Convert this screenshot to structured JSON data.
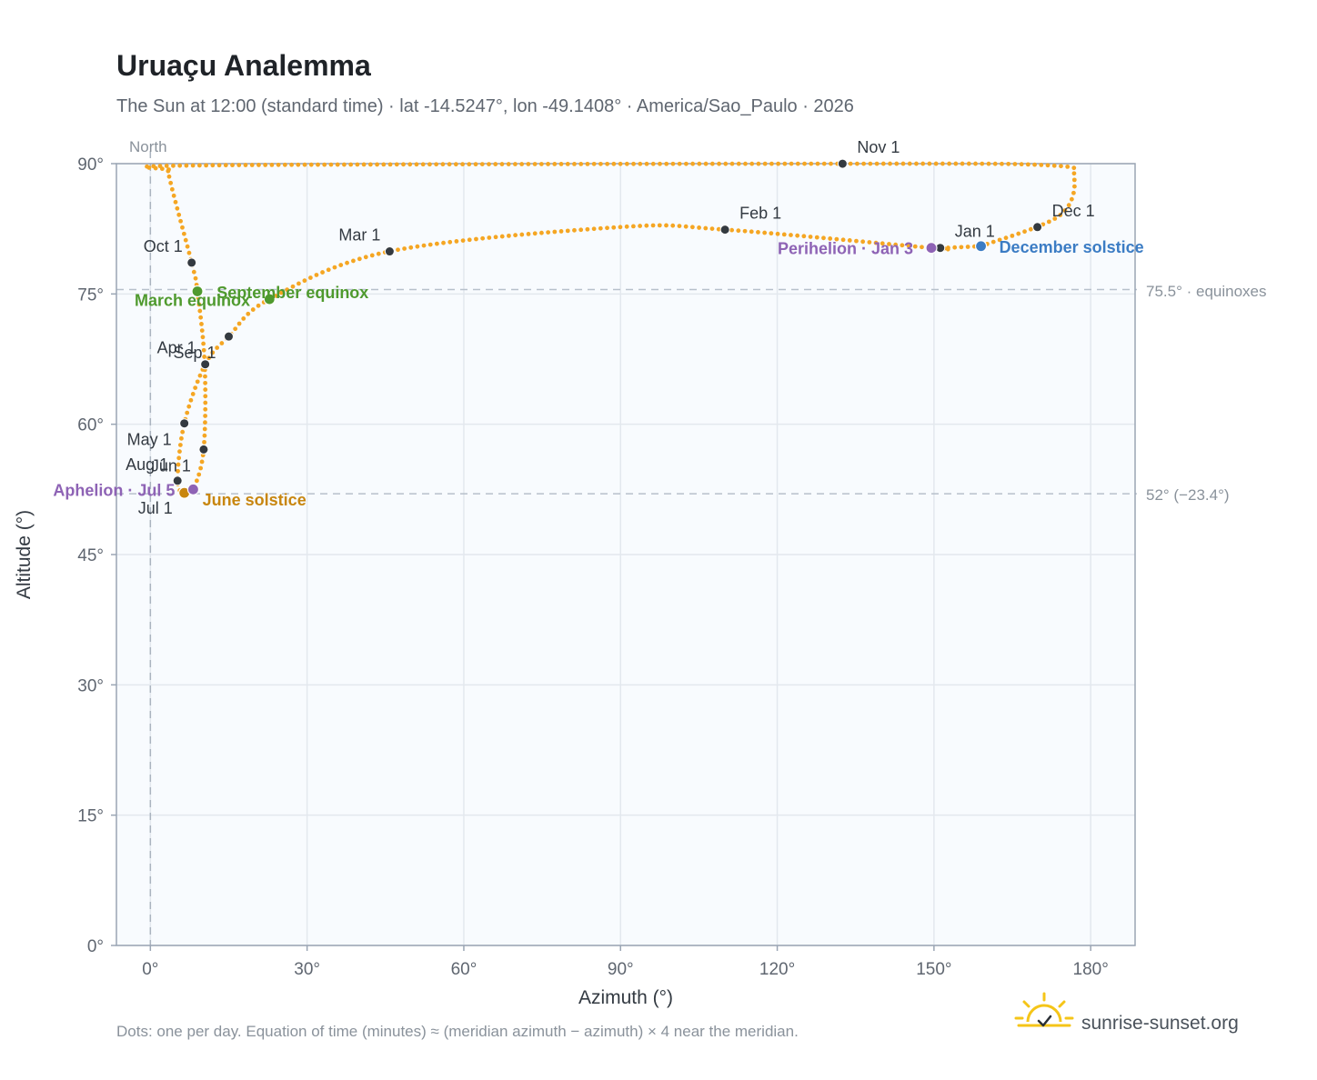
{
  "title": "Uruaçu Analemma",
  "subtitle": "The Sun at 12:00 (standard time) · lat -14.5247°, lon -49.1408° · America/Sao_Paulo · 2026",
  "footnote": "Dots: one per day. Equation of time (minutes) ≈ (meridian azimuth − azimuth) × 4 near the meridian.",
  "brand": {
    "text": "sunrise-sunset.org",
    "icon": "sun-logo-icon"
  },
  "north_label": "North",
  "colors": {
    "path": "#f5a623",
    "month_marker": "#343a40",
    "equinox": "#4f9a2e",
    "june_solstice": "#c8860f",
    "december_solstice": "#3b7cc4",
    "apsis": "#8e63b5",
    "plot_bg": "#f8fbfe",
    "grid": "#e3e8ee",
    "frame": "#9aa5b4"
  },
  "chart_data": {
    "type": "scatter",
    "title": "Uruaçu Analemma",
    "xlabel": "Azimuth (°)",
    "ylabel": "Altitude (°)",
    "xlim": [
      -6.5,
      188.5
    ],
    "ylim": [
      0,
      90
    ],
    "xticks": [
      0,
      30,
      60,
      90,
      120,
      150,
      180
    ],
    "xtick_labels": [
      "0°",
      "30°",
      "60°",
      "90°",
      "120°",
      "150°",
      "180°"
    ],
    "yticks": [
      0,
      15,
      30,
      45,
      60,
      75,
      90
    ],
    "ytick_labels": [
      "0°",
      "15°",
      "30°",
      "45°",
      "60°",
      "75°",
      "90°"
    ],
    "grid": true,
    "reference_lines": [
      {
        "axis": "x",
        "value": 0
      },
      {
        "axis": "y",
        "value": 75.5,
        "label": "75.5° · equinoxes"
      },
      {
        "axis": "y",
        "value": 52,
        "label": "52° (−23.4°)"
      }
    ],
    "path_anchors": [
      {
        "x": 159.0,
        "y": 80.5
      },
      {
        "x": 174.0,
        "y": 84.0
      },
      {
        "x": 176.8,
        "y": 88.5
      },
      {
        "x": 172.0,
        "y": 89.8
      },
      {
        "x": 132.5,
        "y": 89.99
      },
      {
        "x": 10.0,
        "y": 89.8
      },
      {
        "x": 4.0,
        "y": 89.2
      },
      {
        "x": 3.8,
        "y": 88.0
      },
      {
        "x": 7.9,
        "y": 78.6
      },
      {
        "x": 9.0,
        "y": 75.3
      },
      {
        "x": 10.4,
        "y": 66.9
      },
      {
        "x": 10.2,
        "y": 57.1
      },
      {
        "x": 8.2,
        "y": 52.5
      },
      {
        "x": 6.5,
        "y": 52.1
      },
      {
        "x": 5.2,
        "y": 53.5
      },
      {
        "x": 6.5,
        "y": 60.1
      },
      {
        "x": 10.5,
        "y": 66.9
      },
      {
        "x": 15.0,
        "y": 70.1
      },
      {
        "x": 22.8,
        "y": 74.4
      },
      {
        "x": 45.8,
        "y": 79.9
      },
      {
        "x": 90.0,
        "y": 82.7
      },
      {
        "x": 110.0,
        "y": 82.4
      },
      {
        "x": 149.5,
        "y": 80.3
      },
      {
        "x": 152.0,
        "y": 80.3
      },
      {
        "x": 159.0,
        "y": 80.5
      }
    ],
    "month_markers": [
      {
        "label": "Jan 1",
        "x": 151.2,
        "y": 80.3,
        "anchor": "ne"
      },
      {
        "label": "Feb 1",
        "x": 110.0,
        "y": 82.4,
        "anchor": "ne"
      },
      {
        "label": "Mar 1",
        "x": 45.8,
        "y": 79.9,
        "anchor": "nw"
      },
      {
        "label": "Apr 1",
        "x": 10.5,
        "y": 66.9,
        "anchor": "nw"
      },
      {
        "label": "May 1",
        "x": 6.5,
        "y": 60.1,
        "anchor": "sw"
      },
      {
        "label": "Jun 1",
        "x": 10.2,
        "y": 57.1,
        "anchor": "sw"
      },
      {
        "label": "Jul 1",
        "x": 6.7,
        "y": 52.2,
        "anchor": "sw"
      },
      {
        "label": "Aug 1",
        "x": 5.2,
        "y": 53.5,
        "anchor": "nw"
      },
      {
        "label": "Sep 1",
        "x": 15.0,
        "y": 70.1,
        "anchor": "sw"
      },
      {
        "label": "Oct 1",
        "x": 7.9,
        "y": 78.6,
        "anchor": "nw"
      },
      {
        "label": "Nov 1",
        "x": 132.5,
        "y": 89.99,
        "anchor": "ne"
      },
      {
        "label": "Dec 1",
        "x": 169.8,
        "y": 82.7,
        "anchor": "ne"
      }
    ],
    "events": [
      {
        "label": "March equinox",
        "x": 9.0,
        "y": 75.3,
        "color": "equinox",
        "anchor": "sw"
      },
      {
        "label": "September equinox",
        "x": 22.8,
        "y": 74.4,
        "color": "equinox",
        "anchor": "ne"
      },
      {
        "label": "June solstice",
        "x": 6.5,
        "y": 52.1,
        "color": "june_solstice",
        "anchor": "se"
      },
      {
        "label": "December solstice",
        "x": 159.0,
        "y": 80.5,
        "color": "december_solstice",
        "anchor": "e"
      },
      {
        "label": "Aphelion · Jul 5",
        "x": 8.2,
        "y": 52.5,
        "color": "apsis",
        "anchor": "w"
      },
      {
        "label": "Perihelion · Jan 3",
        "x": 149.5,
        "y": 80.3,
        "color": "apsis",
        "anchor": "w"
      }
    ]
  }
}
